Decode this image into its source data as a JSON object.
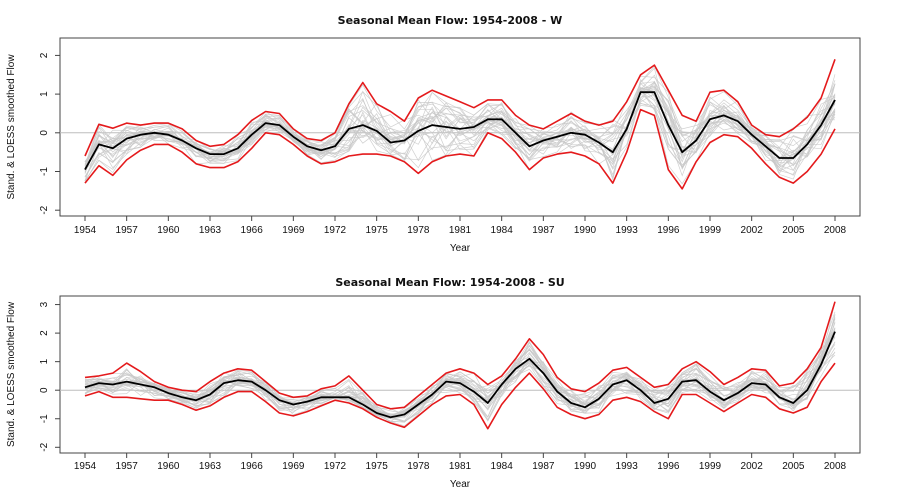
{
  "chart_data": [
    {
      "type": "line",
      "title": "Seasonal Mean Flow: 1954-2008 - W",
      "xlabel": "Year",
      "ylabel": "Stand. & LOESS smoothed Flow",
      "xlim": [
        1954,
        2008
      ],
      "ylim": [
        -2,
        2
      ],
      "yticks": [
        -2,
        -1,
        0,
        1,
        2
      ],
      "xticks": [
        1954,
        1957,
        1960,
        1963,
        1966,
        1969,
        1972,
        1975,
        1978,
        1981,
        1984,
        1987,
        1990,
        1993,
        1996,
        1999,
        2002,
        2005,
        2008
      ],
      "ref_line": 0,
      "grid": false,
      "x": [
        1954,
        1955,
        1956,
        1957,
        1958,
        1959,
        1960,
        1961,
        1962,
        1963,
        1964,
        1965,
        1966,
        1967,
        1968,
        1969,
        1970,
        1971,
        1972,
        1973,
        1974,
        1975,
        1976,
        1977,
        1978,
        1979,
        1980,
        1981,
        1982,
        1983,
        1984,
        1985,
        1986,
        1987,
        1988,
        1989,
        1990,
        1991,
        1992,
        1993,
        1994,
        1995,
        1996,
        1997,
        1998,
        1999,
        2000,
        2001,
        2002,
        2003,
        2004,
        2005,
        2006,
        2007,
        2008
      ],
      "series": [
        {
          "role": "upper",
          "color": "#e41a1c",
          "values": [
            -0.6,
            0.22,
            0.12,
            0.25,
            0.2,
            0.25,
            0.25,
            0.1,
            -0.2,
            -0.35,
            -0.3,
            -0.05,
            0.32,
            0.55,
            0.5,
            0.1,
            -0.15,
            -0.2,
            0.0,
            0.75,
            1.3,
            0.75,
            0.55,
            0.3,
            0.9,
            1.1,
            0.95,
            0.8,
            0.65,
            0.85,
            0.85,
            0.45,
            0.2,
            0.1,
            0.3,
            0.5,
            0.3,
            0.2,
            0.3,
            0.8,
            1.5,
            1.75,
            1.1,
            0.45,
            0.3,
            1.05,
            1.1,
            0.8,
            0.2,
            -0.05,
            -0.1,
            0.1,
            0.4,
            0.9,
            1.9
          ]
        },
        {
          "role": "mean",
          "color": "#000000",
          "values": [
            -0.95,
            -0.3,
            -0.4,
            -0.15,
            -0.05,
            0.0,
            -0.05,
            -0.2,
            -0.4,
            -0.55,
            -0.55,
            -0.4,
            -0.05,
            0.25,
            0.2,
            -0.1,
            -0.35,
            -0.45,
            -0.35,
            0.1,
            0.2,
            0.05,
            -0.25,
            -0.2,
            0.05,
            0.2,
            0.15,
            0.1,
            0.15,
            0.35,
            0.35,
            0.0,
            -0.35,
            -0.2,
            -0.1,
            0.0,
            -0.05,
            -0.25,
            -0.5,
            0.1,
            1.05,
            1.05,
            0.2,
            -0.5,
            -0.2,
            0.35,
            0.45,
            0.3,
            -0.05,
            -0.35,
            -0.65,
            -0.65,
            -0.3,
            0.2,
            0.85
          ]
        },
        {
          "role": "lower",
          "color": "#e41a1c",
          "values": [
            -1.3,
            -0.85,
            -1.1,
            -0.7,
            -0.45,
            -0.3,
            -0.3,
            -0.5,
            -0.8,
            -0.9,
            -0.9,
            -0.75,
            -0.4,
            0.0,
            -0.05,
            -0.3,
            -0.6,
            -0.8,
            -0.75,
            -0.6,
            -0.55,
            -0.55,
            -0.6,
            -0.75,
            -1.05,
            -0.75,
            -0.6,
            -0.55,
            -0.6,
            0.0,
            -0.15,
            -0.5,
            -0.95,
            -0.65,
            -0.55,
            -0.5,
            -0.6,
            -0.8,
            -1.3,
            -0.5,
            0.6,
            0.45,
            -0.95,
            -1.45,
            -0.75,
            -0.25,
            -0.05,
            -0.1,
            -0.4,
            -0.8,
            -1.15,
            -1.3,
            -1.0,
            -0.55,
            0.1
          ]
        }
      ]
    },
    {
      "type": "line",
      "title": "Seasonal Mean Flow: 1954-2008 - SU",
      "xlabel": "Year",
      "ylabel": "Stand. & LOESS smoothed Flow",
      "xlim": [
        1954,
        2008
      ],
      "ylim": [
        -2,
        3
      ],
      "yticks": [
        -2,
        -1,
        0,
        1,
        2,
        3
      ],
      "xticks": [
        1954,
        1957,
        1960,
        1963,
        1966,
        1969,
        1972,
        1975,
        1978,
        1981,
        1984,
        1987,
        1990,
        1993,
        1996,
        1999,
        2002,
        2005,
        2008
      ],
      "ref_line": 0,
      "grid": false,
      "x": [
        1954,
        1955,
        1956,
        1957,
        1958,
        1959,
        1960,
        1961,
        1962,
        1963,
        1964,
        1965,
        1966,
        1967,
        1968,
        1969,
        1970,
        1971,
        1972,
        1973,
        1974,
        1975,
        1976,
        1977,
        1978,
        1979,
        1980,
        1981,
        1982,
        1983,
        1984,
        1985,
        1986,
        1987,
        1988,
        1989,
        1990,
        1991,
        1992,
        1993,
        1994,
        1995,
        1996,
        1997,
        1998,
        1999,
        2000,
        2001,
        2002,
        2003,
        2004,
        2005,
        2006,
        2007,
        2008
      ],
      "series": [
        {
          "role": "upper",
          "color": "#e41a1c",
          "values": [
            0.45,
            0.5,
            0.6,
            0.95,
            0.65,
            0.3,
            0.1,
            0.0,
            -0.05,
            0.3,
            0.6,
            0.75,
            0.7,
            0.3,
            -0.1,
            -0.25,
            -0.2,
            0.05,
            0.15,
            0.5,
            0.0,
            -0.5,
            -0.65,
            -0.6,
            -0.2,
            0.2,
            0.6,
            0.75,
            0.6,
            0.2,
            0.5,
            1.1,
            1.8,
            1.25,
            0.45,
            0.05,
            -0.05,
            0.25,
            0.7,
            0.8,
            0.45,
            0.1,
            0.2,
            0.75,
            1.0,
            0.65,
            0.2,
            0.45,
            0.75,
            0.7,
            0.15,
            0.25,
            0.75,
            1.5,
            3.1
          ]
        },
        {
          "role": "mean",
          "color": "#000000",
          "values": [
            0.1,
            0.25,
            0.2,
            0.3,
            0.2,
            0.1,
            -0.1,
            -0.25,
            -0.35,
            -0.15,
            0.25,
            0.35,
            0.3,
            0.0,
            -0.35,
            -0.5,
            -0.4,
            -0.25,
            -0.25,
            -0.25,
            -0.5,
            -0.8,
            -0.95,
            -0.85,
            -0.5,
            -0.15,
            0.3,
            0.25,
            -0.05,
            -0.45,
            0.2,
            0.75,
            1.1,
            0.6,
            -0.05,
            -0.45,
            -0.6,
            -0.3,
            0.2,
            0.35,
            0.0,
            -0.45,
            -0.3,
            0.3,
            0.35,
            -0.05,
            -0.35,
            -0.1,
            0.25,
            0.2,
            -0.25,
            -0.45,
            0.0,
            0.9,
            2.05
          ]
        },
        {
          "role": "lower",
          "color": "#e41a1c",
          "values": [
            -0.2,
            -0.05,
            -0.25,
            -0.25,
            -0.3,
            -0.35,
            -0.35,
            -0.5,
            -0.7,
            -0.55,
            -0.25,
            -0.05,
            -0.05,
            -0.4,
            -0.8,
            -0.9,
            -0.75,
            -0.55,
            -0.35,
            -0.45,
            -0.65,
            -0.95,
            -1.15,
            -1.3,
            -0.9,
            -0.5,
            -0.2,
            -0.15,
            -0.5,
            -1.35,
            -0.5,
            0.1,
            0.6,
            0.05,
            -0.6,
            -0.85,
            -1.0,
            -0.85,
            -0.35,
            -0.25,
            -0.4,
            -0.75,
            -1.0,
            -0.15,
            -0.15,
            -0.45,
            -0.75,
            -0.45,
            -0.15,
            -0.25,
            -0.65,
            -0.8,
            -0.6,
            0.3,
            0.95
          ]
        }
      ]
    }
  ]
}
